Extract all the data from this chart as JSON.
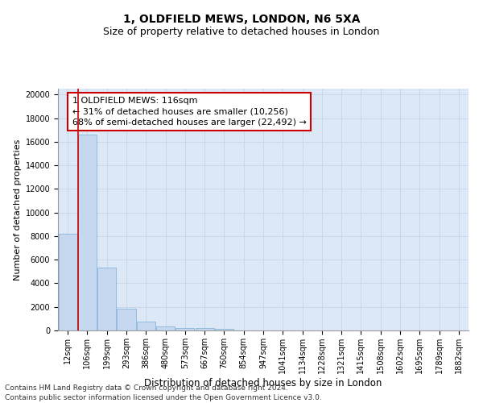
{
  "title": "1, OLDFIELD MEWS, LONDON, N6 5XA",
  "subtitle": "Size of property relative to detached houses in London",
  "xlabel": "Distribution of detached houses by size in London",
  "ylabel": "Number of detached properties",
  "categories": [
    "12sqm",
    "106sqm",
    "199sqm",
    "293sqm",
    "386sqm",
    "480sqm",
    "573sqm",
    "667sqm",
    "760sqm",
    "854sqm",
    "947sqm",
    "1041sqm",
    "1134sqm",
    "1228sqm",
    "1321sqm",
    "1415sqm",
    "1508sqm",
    "1602sqm",
    "1695sqm",
    "1789sqm",
    "1882sqm"
  ],
  "values": [
    8200,
    16600,
    5300,
    1850,
    750,
    330,
    215,
    190,
    160,
    0,
    0,
    0,
    0,
    0,
    0,
    0,
    0,
    0,
    0,
    0,
    0
  ],
  "bar_color": "#c5d8f0",
  "bar_edge_color": "#7bafd4",
  "vline_x_index": 0.545,
  "annotation_line1": "1 OLDFIELD MEWS: 116sqm",
  "annotation_line2": "← 31% of detached houses are smaller (10,256)",
  "annotation_line3": "68% of semi-detached houses are larger (22,492) →",
  "annotation_box_facecolor": "#ffffff",
  "annotation_box_edgecolor": "#cc0000",
  "vline_color": "#cc0000",
  "ylim": [
    0,
    20500
  ],
  "yticks": [
    0,
    2000,
    4000,
    6000,
    8000,
    10000,
    12000,
    14000,
    16000,
    18000,
    20000
  ],
  "grid_color": "#c8d8e8",
  "bg_color": "#dce8f5",
  "footer_line1": "Contains HM Land Registry data © Crown copyright and database right 2024.",
  "footer_line2": "Contains public sector information licensed under the Open Government Licence v3.0.",
  "title_fontsize": 10,
  "subtitle_fontsize": 9,
  "xlabel_fontsize": 8.5,
  "ylabel_fontsize": 8,
  "tick_fontsize": 7,
  "annot_fontsize": 8,
  "footer_fontsize": 6.5
}
